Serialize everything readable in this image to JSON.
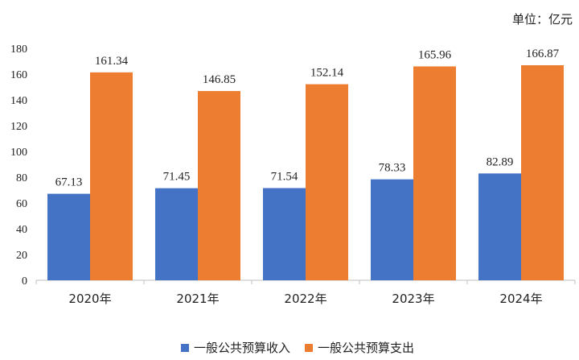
{
  "chart_data": {
    "type": "bar",
    "unit_label": "单位：亿元",
    "categories": [
      "2020年",
      "2021年",
      "2022年",
      "2023年",
      "2024年"
    ],
    "series": [
      {
        "name": "一般公共预算收入",
        "color": "#4472C4",
        "values": [
          67.13,
          71.45,
          71.54,
          78.33,
          82.89
        ],
        "labels": [
          "67.13",
          "71.45",
          "71.54",
          "78.33",
          "82.89"
        ]
      },
      {
        "name": "一般公共预算支出",
        "color": "#ED7D31",
        "values": [
          161.34,
          146.85,
          152.14,
          165.96,
          166.87
        ],
        "labels": [
          "161.34",
          "146.85",
          "152.14",
          "165.96",
          "166.87"
        ]
      }
    ],
    "ylim": [
      0,
      180
    ],
    "y_ticks": [
      0,
      20,
      40,
      60,
      80,
      100,
      120,
      140,
      160,
      180
    ],
    "grid": false,
    "legend_position": "bottom"
  }
}
